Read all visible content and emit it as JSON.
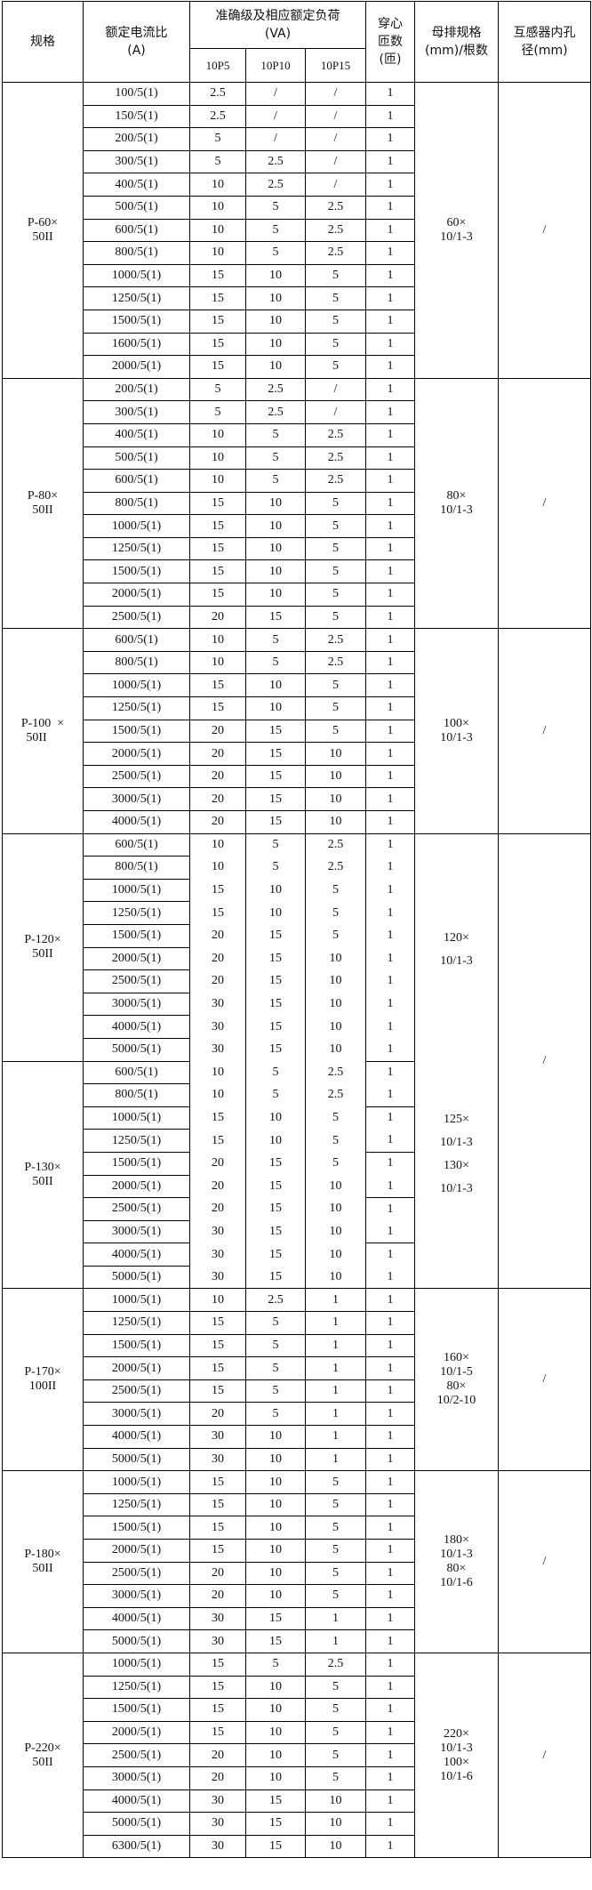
{
  "header": {
    "spec": "规格",
    "ratio": "额定电流比\n(A)",
    "accuracy": "准确级及相应额定负荷\n(VA)",
    "classes": [
      "10P5",
      "10P10",
      "10P15"
    ],
    "turns": "穿心\n匝数\n(匝)",
    "busbar": "母排规格\n(mm)/根数",
    "inner_hole": "互感器内孔\n径(mm)"
  },
  "groups": [
    {
      "spec": "P-60×\n50II",
      "busbar": "60×\n10/1-3",
      "inner_hole": "/",
      "rows": [
        [
          "100/5(1)",
          "2.5",
          "/",
          "/",
          "1"
        ],
        [
          "150/5(1)",
          "2.5",
          "/",
          "/",
          "1"
        ],
        [
          "200/5(1)",
          "5",
          "/",
          "/",
          "1"
        ],
        [
          "300/5(1)",
          "5",
          "2.5",
          "/",
          "1"
        ],
        [
          "400/5(1)",
          "10",
          "2.5",
          "/",
          "1"
        ],
        [
          "500/5(1)",
          "10",
          "5",
          "2.5",
          "1"
        ],
        [
          "600/5(1)",
          "10",
          "5",
          "2.5",
          "1"
        ],
        [
          "800/5(1)",
          "10",
          "5",
          "2.5",
          "1"
        ],
        [
          "1000/5(1)",
          "15",
          "10",
          "5",
          "1"
        ],
        [
          "1250/5(1)",
          "15",
          "10",
          "5",
          "1"
        ],
        [
          "1500/5(1)",
          "15",
          "10",
          "5",
          "1"
        ],
        [
          "1600/5(1)",
          "15",
          "10",
          "5",
          "1"
        ],
        [
          "2000/5(1)",
          "15",
          "10",
          "5",
          "1"
        ]
      ]
    },
    {
      "spec": "P-80×\n50II",
      "busbar": "80×\n10/1-3",
      "inner_hole": "/",
      "rows": [
        [
          "200/5(1)",
          "5",
          "2.5",
          "/",
          "1"
        ],
        [
          "300/5(1)",
          "5",
          "2.5",
          "/",
          "1"
        ],
        [
          "400/5(1)",
          "10",
          "5",
          "2.5",
          "1"
        ],
        [
          "500/5(1)",
          "10",
          "5",
          "2.5",
          "1"
        ],
        [
          "600/5(1)",
          "10",
          "5",
          "2.5",
          "1"
        ],
        [
          "800/5(1)",
          "15",
          "10",
          "5",
          "1"
        ],
        [
          "1000/5(1)",
          "15",
          "10",
          "5",
          "1"
        ],
        [
          "1250/5(1)",
          "15",
          "10",
          "5",
          "1"
        ],
        [
          "1500/5(1)",
          "15",
          "10",
          "5",
          "1"
        ],
        [
          "2000/5(1)",
          "15",
          "10",
          "5",
          "1"
        ],
        [
          "2500/5(1)",
          "20",
          "15",
          "5",
          "1"
        ]
      ]
    },
    {
      "spec": "P-100  ×\n50II    ",
      "busbar": "100×\n10/1-3",
      "inner_hole": "/",
      "rows": [
        [
          "600/5(1)",
          "10",
          "5",
          "2.5",
          "1"
        ],
        [
          "800/5(1)",
          "10",
          "5",
          "2.5",
          "1"
        ],
        [
          "1000/5(1)",
          "15",
          "10",
          "5",
          "1"
        ],
        [
          "1250/5(1)",
          "15",
          "10",
          "5",
          "1"
        ],
        [
          "1500/5(1)",
          "20",
          "15",
          "5",
          "1"
        ],
        [
          "2000/5(1)",
          "20",
          "15",
          "10",
          "1"
        ],
        [
          "2500/5(1)",
          "20",
          "15",
          "10",
          "1"
        ],
        [
          "3000/5(1)",
          "20",
          "15",
          "10",
          "1"
        ],
        [
          "4000/5(1)",
          "20",
          "15",
          "10",
          "1"
        ]
      ]
    },
    {
      "spec": "P-120×\n50II",
      "busbar": "120×\n10/1-3",
      "inner_hole": "/",
      "rows": [
        [
          "600/5(1)",
          "10",
          "5",
          "2.5",
          "1"
        ],
        [
          "800/5(1)",
          "10",
          "5",
          "2.5",
          "1"
        ],
        [
          "1000/5(1)",
          "15",
          "10",
          "5",
          "1"
        ],
        [
          "1250/5(1)",
          "15",
          "10",
          "5",
          "1"
        ],
        [
          "1500/5(1)",
          "20",
          "15",
          "5",
          "1"
        ],
        [
          "2000/5(1)",
          "20",
          "15",
          "10",
          "1"
        ],
        [
          "2500/5(1)",
          "20",
          "15",
          "10",
          "1"
        ],
        [
          "3000/5(1)",
          "30",
          "15",
          "10",
          "1"
        ],
        [
          "4000/5(1)",
          "30",
          "15",
          "10",
          "1"
        ],
        [
          "5000/5(1)",
          "30",
          "15",
          "10",
          "1"
        ]
      ]
    },
    {
      "spec": "P-130×\n50II",
      "busbar": "125×\n10/1-3\n130×\n10/1-3",
      "inner_hole": "",
      "rows": [
        [
          "600/5(1)",
          "10",
          "5",
          "2.5",
          "1"
        ],
        [
          "800/5(1)",
          "10",
          "5",
          "2.5",
          "1"
        ],
        [
          "1000/5(1)",
          "15",
          "10",
          "5",
          "1"
        ],
        [
          "1250/5(1)",
          "15",
          "10",
          "5",
          "1"
        ],
        [
          "1500/5(1)",
          "20",
          "15",
          "5",
          "1"
        ],
        [
          "2000/5(1)",
          "20",
          "15",
          "10",
          "1"
        ],
        [
          "2500/5(1)",
          "20",
          "15",
          "10",
          "1"
        ],
        [
          "3000/5(1)",
          "30",
          "15",
          "10",
          "1"
        ],
        [
          "4000/5(1)",
          "30",
          "15",
          "10",
          "1"
        ],
        [
          "5000/5(1)",
          "30",
          "15",
          "10",
          "1"
        ]
      ]
    },
    {
      "spec": "P-170×\n100II",
      "busbar": "160×\n10/1-5\n80×\n10/2-10",
      "inner_hole": "/",
      "rows": [
        [
          "1000/5(1)",
          "10",
          "2.5",
          "1",
          "1"
        ],
        [
          "1250/5(1)",
          "15",
          "5",
          "1",
          "1"
        ],
        [
          "1500/5(1)",
          "15",
          "5",
          "1",
          "1"
        ],
        [
          "2000/5(1)",
          "15",
          "5",
          "1",
          "1"
        ],
        [
          "2500/5(1)",
          "15",
          "5",
          "1",
          "1"
        ],
        [
          "3000/5(1)",
          "20",
          "5",
          "1",
          "1"
        ],
        [
          "4000/5(1)",
          "30",
          "10",
          "1",
          "1"
        ],
        [
          "5000/5(1)",
          "30",
          "10",
          "1",
          "1"
        ]
      ]
    },
    {
      "spec": "P-180×\n50II",
      "busbar": "180×\n10/1-3\n80×\n10/1-6",
      "inner_hole": "/",
      "rows": [
        [
          "1000/5(1)",
          "15",
          "10",
          "5",
          "1"
        ],
        [
          "1250/5(1)",
          "15",
          "10",
          "5",
          "1"
        ],
        [
          "1500/5(1)",
          "15",
          "10",
          "5",
          "1"
        ],
        [
          "2000/5(1)",
          "15",
          "10",
          "5",
          "1"
        ],
        [
          "2500/5(1)",
          "20",
          "10",
          "5",
          "1"
        ],
        [
          "3000/5(1)",
          "20",
          "10",
          "5",
          "1"
        ],
        [
          "4000/5(1)",
          "30",
          "15",
          "1",
          "1"
        ],
        [
          "5000/5(1)",
          "30",
          "15",
          "1",
          "1"
        ]
      ]
    },
    {
      "spec": "P-220×\n50II",
      "busbar": "220×\n10/1-3\n100×\n10/1-6",
      "inner_hole": "/",
      "rows": [
        [
          "1000/5(1)",
          "15",
          "5",
          "2.5",
          "1"
        ],
        [
          "1250/5(1)",
          "15",
          "10",
          "5",
          "1"
        ],
        [
          "1500/5(1)",
          "15",
          "10",
          "5",
          "1"
        ],
        [
          "2000/5(1)",
          "15",
          "10",
          "5",
          "1"
        ],
        [
          "2500/5(1)",
          "20",
          "10",
          "5",
          "1"
        ],
        [
          "3000/5(1)",
          "20",
          "10",
          "5",
          "1"
        ],
        [
          "4000/5(1)",
          "30",
          "15",
          "10",
          "1"
        ],
        [
          "5000/5(1)",
          "30",
          "15",
          "10",
          "1"
        ],
        [
          "6300/5(1)",
          "30",
          "15",
          "10",
          "1"
        ]
      ]
    }
  ]
}
